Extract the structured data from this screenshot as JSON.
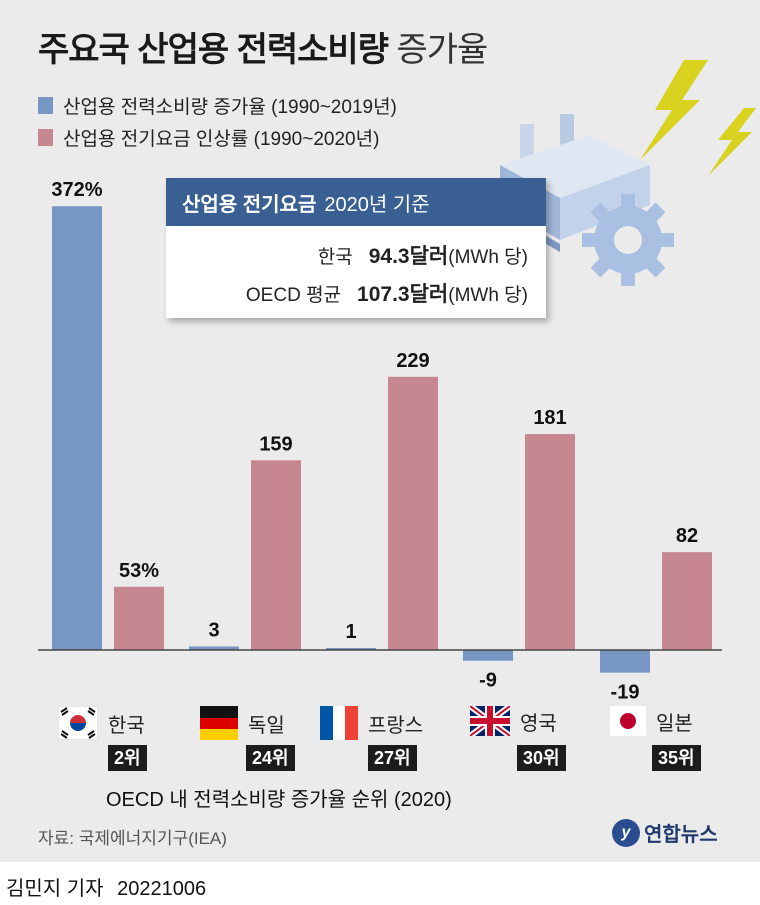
{
  "title_bold": "주요국 산업용 전력소비량",
  "title_light": "증가율",
  "colors": {
    "consumption": "#7896c4",
    "price": "#c68791",
    "header": "#3a5f93",
    "background": "#ebebeb"
  },
  "chart_data": {
    "type": "bar",
    "categories": [
      "한국",
      "독일",
      "프랑스",
      "영국",
      "일본"
    ],
    "series": [
      {
        "name": "산업용 전력소비량 증가율 (1990~2019년)",
        "values": [
          372,
          3,
          1,
          -9,
          -19
        ],
        "labels": [
          "372%",
          "3",
          "1",
          "-9",
          "-19"
        ]
      },
      {
        "name": "산업용 전기요금 인상률 (1990~2020년)",
        "values": [
          53,
          159,
          229,
          181,
          82
        ],
        "labels": [
          "53%",
          "159",
          "229",
          "181",
          "82"
        ]
      }
    ],
    "ylim": [
      -30,
      380
    ],
    "grid": false
  },
  "info": {
    "header_bold": "산업용 전기요금",
    "header_light": "2020년 기준",
    "rows": [
      {
        "label": "한국",
        "value": "94.3달러",
        "unit": "(MWh 당)"
      },
      {
        "label": "OECD 평균",
        "value": "107.3달러",
        "unit": "(MWh 당)"
      }
    ]
  },
  "countries": [
    {
      "name": "한국",
      "rank": "2위",
      "flag": "korea-flag-icon"
    },
    {
      "name": "독일",
      "rank": "24위",
      "flag": "germany-flag-icon"
    },
    {
      "name": "프랑스",
      "rank": "27위",
      "flag": "france-flag-icon"
    },
    {
      "name": "영국",
      "rank": "30위",
      "flag": "uk-flag-icon"
    },
    {
      "name": "일본",
      "rank": "35위",
      "flag": "japan-flag-icon"
    }
  ],
  "rank_caption": "OECD 내 전력소비량 증가율 순위 (2020)",
  "source": "자료: 국제에너지기구(IEA)",
  "logo": "연합뉴스",
  "byline": {
    "author": "김민지 기자",
    "date": "20221006"
  }
}
